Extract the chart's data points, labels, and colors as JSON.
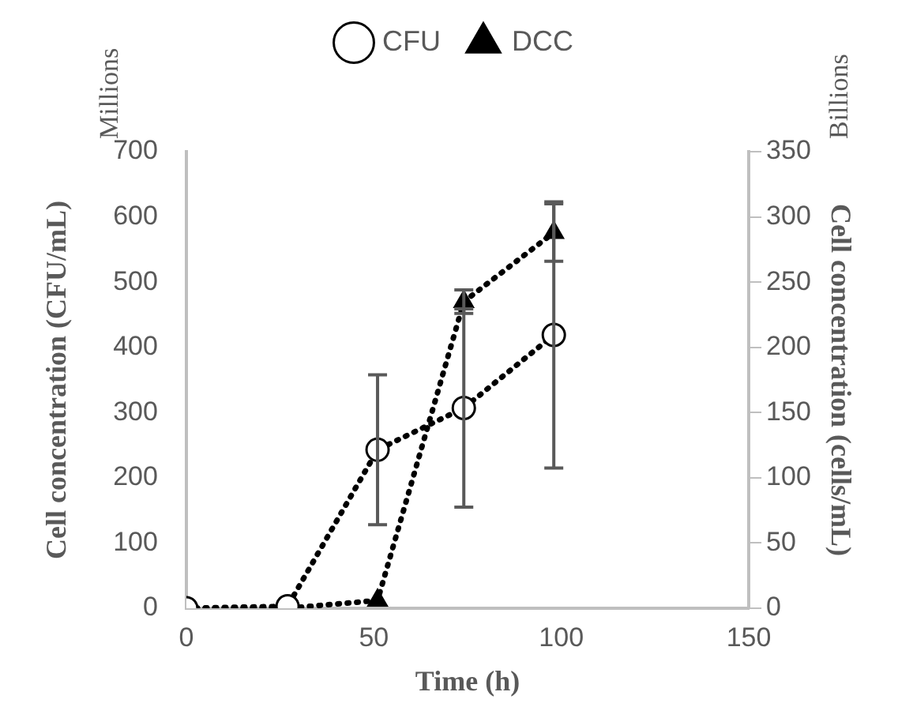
{
  "chart_data": {
    "type": "line",
    "xlabel": "Time (h)",
    "ylabel": "Cell concentration (CFU/mL)",
    "y2label": "Cell concentration (cells/mL)",
    "annotations": [
      "Millions",
      "Billions"
    ],
    "x": [
      0,
      27,
      51,
      74,
      98
    ],
    "series": [
      {
        "name": "CFU",
        "color": "#000000",
        "values": [
          0,
          3,
          243,
          307,
          419
        ],
        "errors": [
          null,
          null,
          115,
          152,
          204
        ],
        "marker": "circle"
      },
      {
        "name": "DCC",
        "color": "#000000",
        "values": [
          0,
          0,
          6,
          235,
          288
        ],
        "errors": [
          null,
          null,
          null,
          9,
          22
        ],
        "axis": "y2",
        "marker": "triangle"
      }
    ],
    "xlim": [
      0,
      150
    ],
    "xticks": [
      0,
      50,
      100,
      150
    ],
    "ylim": [
      0,
      700
    ],
    "yticks": [
      0,
      100,
      200,
      300,
      400,
      500,
      600,
      700
    ],
    "y2lim": [
      0,
      350
    ],
    "y2ticks": [
      0,
      50,
      100,
      150,
      200,
      250,
      300,
      350
    ],
    "grid": false,
    "legend": "top",
    "line_style": "dotted"
  }
}
